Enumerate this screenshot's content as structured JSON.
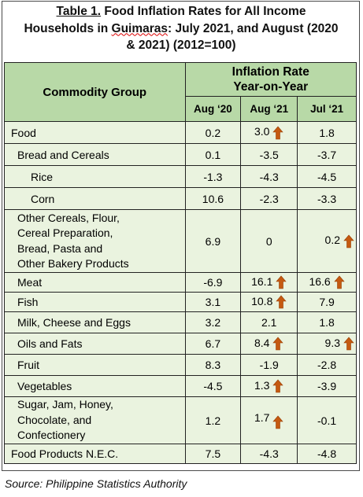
{
  "title": {
    "label": "Table 1.",
    "line1_rest": " Food Inflation Rates for All Income",
    "line2_a": "Households in ",
    "line2_place": "Guimaras",
    "line2_b": ": July 2021, and August (2020",
    "line3": "& 2021) (2012=100)"
  },
  "table": {
    "col_commodity": "Commodity Group",
    "col_inflation_line1": "Inflation Rate",
    "col_inflation_line2": "Year-on-Year",
    "sub_aug20": "Aug ‘20",
    "sub_aug21": "Aug  ‘21",
    "sub_jul21": "Jul ‘21",
    "rows": [
      {
        "name": "Food",
        "aug20": "0.2",
        "aug21": "3.0",
        "jul21": "1.8"
      },
      {
        "name": "Bread and Cereals",
        "aug20": "0.1",
        "aug21": "-3.5",
        "jul21": "-3.7"
      },
      {
        "name": "Rice",
        "aug20": "-1.3",
        "aug21": "-4.3",
        "jul21": "-4.5"
      },
      {
        "name": "Corn",
        "aug20": "10.6",
        "aug21": "-2.3",
        "jul21": "-3.3"
      },
      {
        "name_lines": [
          "Other Cereals, Flour,",
          "Cereal Preparation,",
          "Bread, Pasta and",
          "Other Bakery Products"
        ],
        "aug20": "6.9",
        "aug21": "0",
        "jul21": "0.2"
      },
      {
        "name": "Meat",
        "aug20": "-6.9",
        "aug21": "16.1",
        "jul21": "16.6"
      },
      {
        "name": "Fish",
        "aug20": "3.1",
        "aug21": "10.8",
        "jul21": "7.9"
      },
      {
        "name": "Milk, Cheese and Eggs",
        "aug20": "3.2",
        "aug21": "2.1",
        "jul21": "1.8"
      },
      {
        "name": "Oils and Fats",
        "aug20": "6.7",
        "aug21": "8.4",
        "jul21": "9.3"
      },
      {
        "name": "Fruit",
        "aug20": "8.3",
        "aug21": "-1.9",
        "jul21": "-2.8"
      },
      {
        "name": "Vegetables",
        "aug20": "-4.5",
        "aug21": "1.3",
        "jul21": "-3.9"
      },
      {
        "name_lines": [
          "Sugar, Jam, Honey,",
          "Chocolate, and",
          "Confectionery"
        ],
        "aug20": "1.2",
        "aug21": "1.7",
        "jul21": "-0.1"
      },
      {
        "name": "Food Products N.E.C.",
        "aug20": "7.5",
        "aug21": "-4.3",
        "jul21": "-4.8"
      }
    ]
  },
  "icons": {
    "increase": "up-arrow-icon"
  },
  "colors": {
    "header_bg": "#b8d9a7",
    "row_bg": "#eaf3df",
    "arrow": "#c55a11"
  },
  "source": "Source: Philippine Statistics Authority"
}
